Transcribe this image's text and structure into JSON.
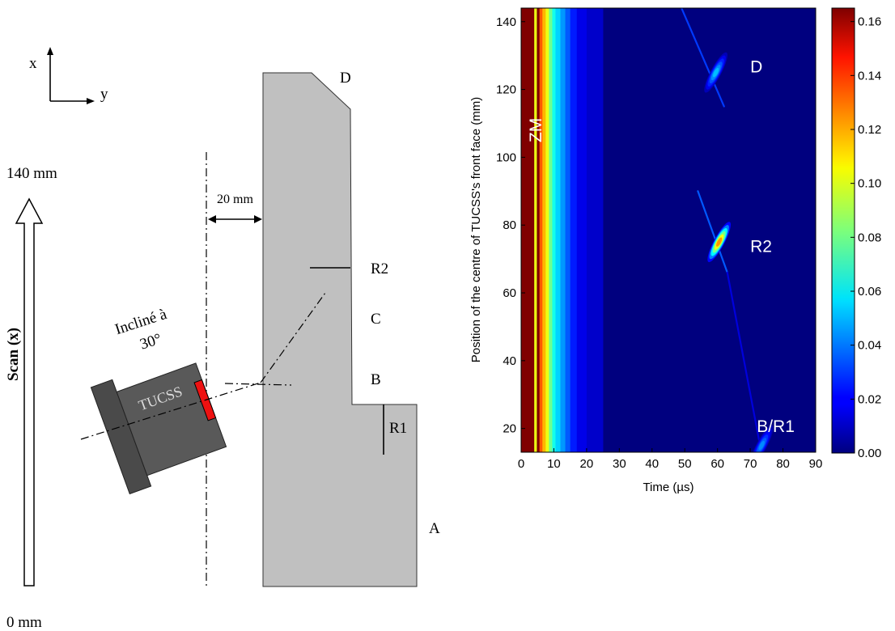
{
  "diagram": {
    "axes": {
      "x_label": "x",
      "y_label": "y"
    },
    "scan": {
      "top_label": "140 mm",
      "bottom_label": "0 mm",
      "axis_label": "Scan (x)"
    },
    "distance_label": "20 mm",
    "incline_line1": "Incliné à",
    "incline_line2": "30°",
    "probe_label": "TUCSS",
    "points": {
      "D": "D",
      "R2": "R2",
      "C": "C",
      "B": "B",
      "R1": "R1",
      "A": "A"
    },
    "colors": {
      "part": "#c0c0c0",
      "probe": "#595959",
      "probe_dark": "#4a4a4a",
      "element": "#ee1111"
    }
  },
  "chart_data": {
    "type": "heatmap",
    "xlabel": "Time (µs)",
    "ylabel": "Position of the centre of TUCSS's front face (mm)",
    "xlim": [
      0,
      90
    ],
    "ylim": [
      13,
      144
    ],
    "xticks": [
      "0",
      "10",
      "20",
      "30",
      "40",
      "50",
      "60",
      "70",
      "80",
      "90"
    ],
    "yticks": [
      "20",
      "40",
      "60",
      "80",
      "100",
      "120",
      "140"
    ],
    "colorbar": {
      "range": [
        0,
        0.165
      ],
      "ticks": [
        "0.00",
        "0.02",
        "0.04",
        "0.06",
        "0.08",
        "0.10",
        "0.12",
        "0.14",
        "0.16"
      ],
      "colormap": "jet"
    },
    "vertical_bands": [
      {
        "t_start": 0,
        "t_end": 4,
        "amplitude": 0.165
      },
      {
        "t_start": 4,
        "t_end": 4.8,
        "amplitude": 0.1
      },
      {
        "t_start": 4.8,
        "t_end": 5.6,
        "amplitude": 0.165
      },
      {
        "t_start": 5.6,
        "t_end": 6.5,
        "amplitude": 0.13
      },
      {
        "t_start": 6.5,
        "t_end": 7.5,
        "amplitude": 0.115
      },
      {
        "t_start": 7.5,
        "t_end": 8.5,
        "amplitude": 0.1
      },
      {
        "t_start": 8.5,
        "t_end": 9.5,
        "amplitude": 0.08
      },
      {
        "t_start": 9.5,
        "t_end": 10.5,
        "amplitude": 0.065
      },
      {
        "t_start": 10.5,
        "t_end": 12,
        "amplitude": 0.055
      },
      {
        "t_start": 12,
        "t_end": 13.5,
        "amplitude": 0.045
      },
      {
        "t_start": 13.5,
        "t_end": 15,
        "amplitude": 0.035
      },
      {
        "t_start": 15,
        "t_end": 17,
        "amplitude": 0.025
      },
      {
        "t_start": 17,
        "t_end": 20,
        "amplitude": 0.017
      },
      {
        "t_start": 20,
        "t_end": 25,
        "amplitude": 0.012
      }
    ],
    "echo_traces": [
      {
        "t1": 49,
        "x1": 144,
        "t2": 62,
        "x2": 115,
        "amplitude": 0.03
      },
      {
        "t1": 54,
        "x1": 90,
        "t2": 63,
        "x2": 66,
        "amplitude": 0.035
      },
      {
        "t1": 63,
        "x1": 66,
        "t2": 73,
        "x2": 15,
        "amplitude": 0.015
      }
    ],
    "echo_spots": [
      {
        "t": 59.5,
        "x": 125,
        "peak": 0.06
      },
      {
        "t": 60.5,
        "x": 75,
        "peak": 0.14
      },
      {
        "t": 73.5,
        "x": 15,
        "peak": 0.05
      }
    ],
    "annotations": [
      {
        "text": "D",
        "t": 70,
        "x": 125
      },
      {
        "text": "R2",
        "t": 70,
        "x": 72
      },
      {
        "text": "B/R1",
        "t": 72,
        "x": 19
      },
      {
        "text": "ZM",
        "t": 4.5,
        "x": 108
      }
    ]
  }
}
